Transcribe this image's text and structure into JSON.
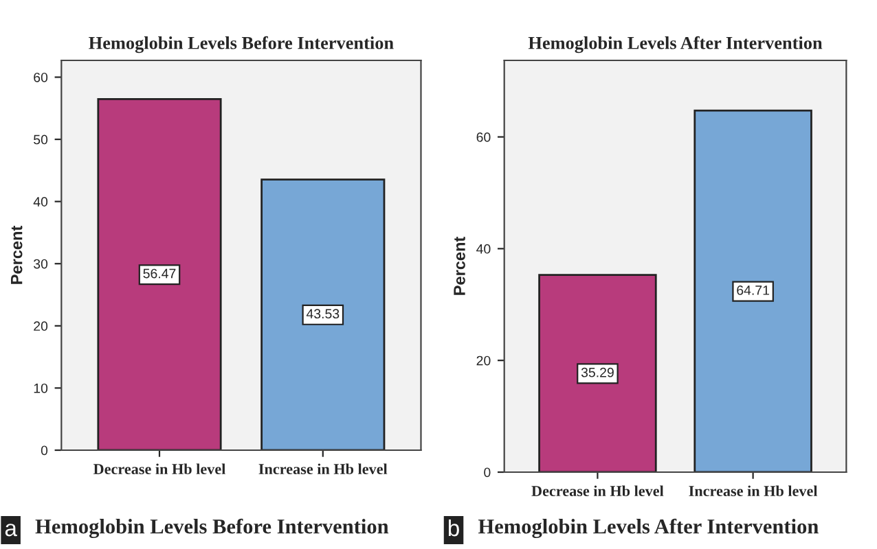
{
  "chart_data": [
    {
      "type": "bar",
      "title": "Hemoglobin Levels Before Intervention",
      "ylabel": "Percent",
      "categories": [
        "Decrease in Hb level",
        "Increase in Hb level"
      ],
      "values": [
        56.47,
        43.53
      ],
      "colors": [
        "#b83b7c",
        "#77a7d6"
      ],
      "ylim": [
        0,
        62.7
      ],
      "yticks": [
        0,
        10,
        20,
        30,
        40,
        50,
        60
      ],
      "data_labels": true,
      "grid": false,
      "legend": false,
      "annotations": [
        "a",
        "Hemoglobin Levels Before Intervention"
      ]
    },
    {
      "type": "bar",
      "title": "Hemoglobin Levels After Intervention",
      "ylabel": "Percent",
      "categories": [
        "Decrease in Hb level",
        "Increase in Hb level"
      ],
      "values": [
        35.29,
        64.71
      ],
      "colors": [
        "#b83b7c",
        "#77a7d6"
      ],
      "ylim": [
        0,
        73.7
      ],
      "yticks": [
        0,
        20,
        40,
        60
      ],
      "data_labels": true,
      "grid": false,
      "legend": false,
      "annotations": [
        "b",
        "Hemoglobin Levels After Intervention"
      ]
    }
  ]
}
